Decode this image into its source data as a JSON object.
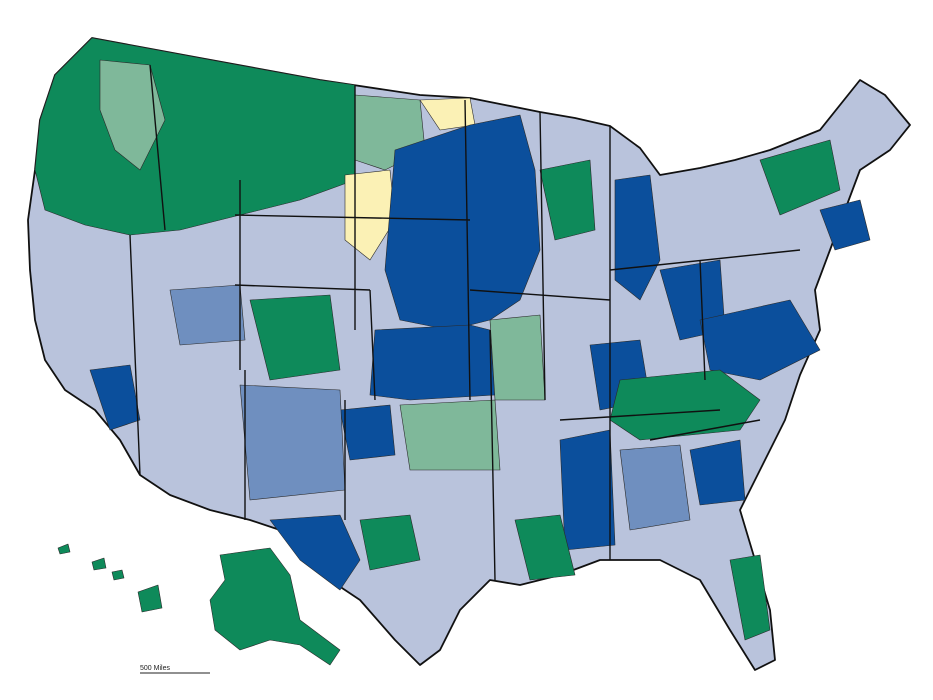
{
  "map": {
    "palette": {
      "dark_blue": "#0b4f9c",
      "mid_blue": "#6f8fbf",
      "light_blue": "#b9c3dc",
      "green": "#0e8a5a",
      "light_green": "#7fb89a",
      "yellow": "#fbf1b5",
      "white": "#ffffff"
    },
    "regions": [
      "contiguous-us",
      "alaska",
      "hawaii"
    ],
    "scale_bar_text": "500 Miles"
  }
}
